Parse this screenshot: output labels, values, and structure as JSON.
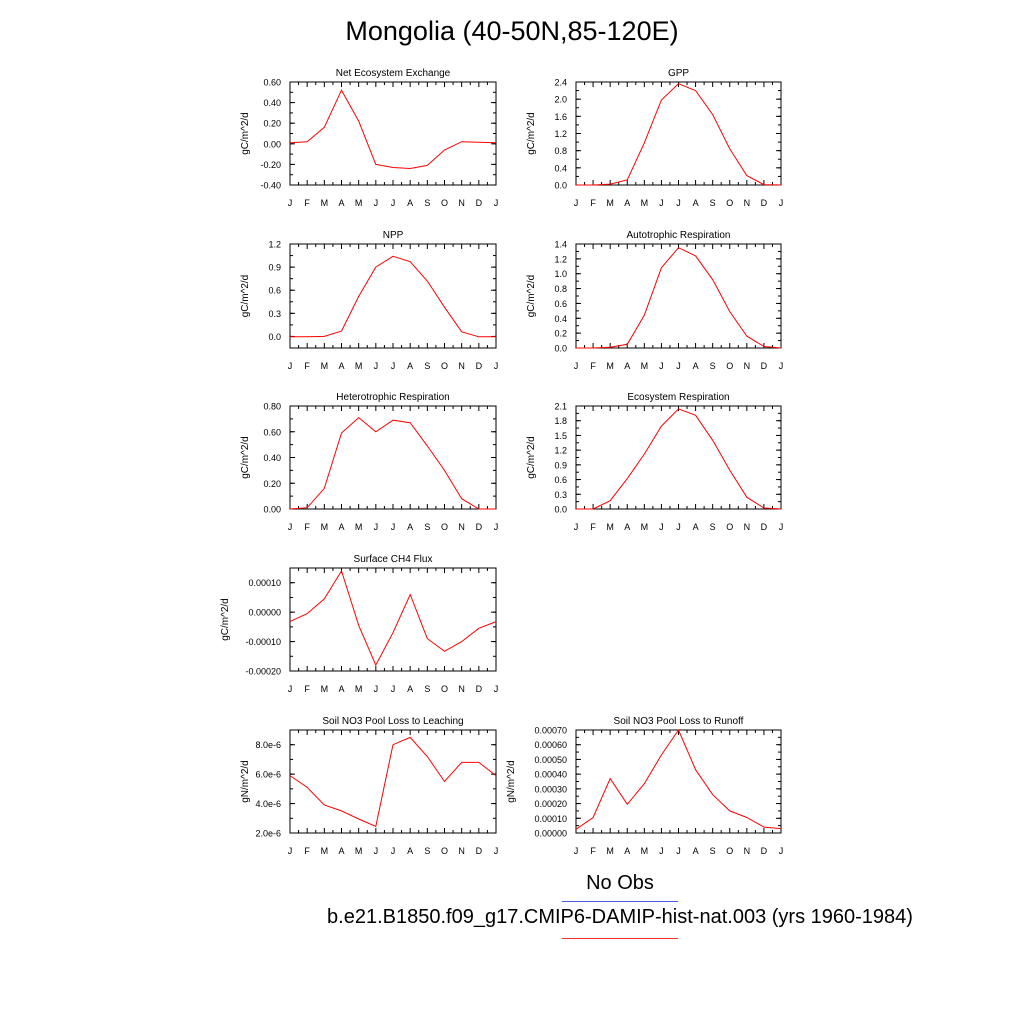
{
  "title": "Mongolia (40-50N,85-120E)",
  "legend": {
    "obs_label": "No Obs",
    "obs_color": "#4a5ee8",
    "case_label": "b.e21.B1850.f09_g17.CMIP6-DAMIP-hist-nat.003 (yrs 1960-1984)",
    "case_color": "#ff0000"
  },
  "chart_data": [
    {
      "type": "line",
      "title": "Net Ecosystem Exchange",
      "ylabel": "gC/m^2/d",
      "categories": [
        "J",
        "F",
        "M",
        "A",
        "M",
        "J",
        "J",
        "A",
        "S",
        "O",
        "N",
        "D",
        "J"
      ],
      "ylim": [
        -0.4,
        0.6
      ],
      "yticks": [
        "-0.40",
        "-0.20",
        "0.00",
        "0.20",
        "0.40",
        "0.60"
      ],
      "series": [
        {
          "values": [
            0.01,
            0.02,
            0.16,
            0.52,
            0.22,
            -0.2,
            -0.23,
            -0.24,
            -0.21,
            -0.06,
            0.02,
            0.015,
            0.01
          ]
        }
      ]
    },
    {
      "type": "line",
      "title": "GPP",
      "ylabel": "gC/m^2/d",
      "categories": [
        "J",
        "F",
        "M",
        "A",
        "M",
        "J",
        "J",
        "A",
        "S",
        "O",
        "N",
        "D",
        "J"
      ],
      "ylim": [
        0,
        2.4
      ],
      "yticks": [
        "0.0",
        "0.4",
        "0.8",
        "1.2",
        "1.6",
        "2.0",
        "2.4"
      ],
      "series": [
        {
          "values": [
            0.0,
            0.0,
            0.02,
            0.12,
            0.98,
            1.98,
            2.36,
            2.2,
            1.64,
            0.84,
            0.22,
            0.01,
            0.0
          ]
        }
      ]
    },
    {
      "type": "line",
      "title": "NPP",
      "ylabel": "gC/m^2/d",
      "categories": [
        "J",
        "F",
        "M",
        "A",
        "M",
        "J",
        "J",
        "A",
        "S",
        "O",
        "N",
        "D",
        "J"
      ],
      "ylim": [
        -0.15,
        1.2
      ],
      "yticks": [
        "0.0",
        "0.3",
        "0.6",
        "0.9",
        "1.2"
      ],
      "series": [
        {
          "values": [
            -0.005,
            -0.005,
            0.0,
            0.07,
            0.52,
            0.9,
            1.04,
            0.97,
            0.72,
            0.38,
            0.06,
            -0.005,
            -0.005
          ]
        }
      ]
    },
    {
      "type": "line",
      "title": "Autotrophic Respiration",
      "ylabel": "gC/m^2/d",
      "categories": [
        "J",
        "F",
        "M",
        "A",
        "M",
        "J",
        "J",
        "A",
        "S",
        "O",
        "N",
        "D",
        "J"
      ],
      "ylim": [
        0,
        1.4
      ],
      "yticks": [
        "0.0",
        "0.2",
        "0.4",
        "0.6",
        "0.8",
        "1.0",
        "1.2",
        "1.4"
      ],
      "series": [
        {
          "values": [
            0.0,
            0.0,
            0.01,
            0.05,
            0.44,
            1.08,
            1.35,
            1.24,
            0.92,
            0.49,
            0.16,
            0.02,
            0.0
          ]
        }
      ]
    },
    {
      "type": "line",
      "title": "Heterotrophic Respiration",
      "ylabel": "gC/m^2/d",
      "categories": [
        "J",
        "F",
        "M",
        "A",
        "M",
        "J",
        "J",
        "A",
        "S",
        "O",
        "N",
        "D",
        "J"
      ],
      "ylim": [
        0,
        0.8
      ],
      "yticks": [
        "0.00",
        "0.20",
        "0.40",
        "0.60",
        "0.80"
      ],
      "series": [
        {
          "values": [
            0.0,
            0.01,
            0.16,
            0.59,
            0.71,
            0.6,
            0.69,
            0.67,
            0.49,
            0.3,
            0.08,
            0.0,
            0.0
          ]
        }
      ]
    },
    {
      "type": "line",
      "title": "Ecosystem Respiration",
      "ylabel": "gC/m^2/d",
      "categories": [
        "J",
        "F",
        "M",
        "A",
        "M",
        "J",
        "J",
        "A",
        "S",
        "O",
        "N",
        "D",
        "J"
      ],
      "ylim": [
        0,
        2.1
      ],
      "yticks": [
        "0.0",
        "0.3",
        "0.6",
        "0.9",
        "1.2",
        "1.5",
        "1.8",
        "2.1"
      ],
      "series": [
        {
          "values": [
            0.0,
            0.0,
            0.17,
            0.62,
            1.12,
            1.69,
            2.04,
            1.91,
            1.4,
            0.79,
            0.24,
            0.02,
            0.0
          ]
        }
      ]
    },
    {
      "type": "line",
      "title": "Surface CH4 Flux",
      "ylabel": "gC/m^2/d",
      "categories": [
        "J",
        "F",
        "M",
        "A",
        "M",
        "J",
        "J",
        "A",
        "S",
        "O",
        "N",
        "D",
        "J"
      ],
      "ylim": [
        -0.0002,
        0.00015
      ],
      "yticks": [
        "-0.00020",
        "-0.00010",
        "0.00000",
        "0.00010"
      ],
      "ytick_values": [
        -0.0002,
        -0.0001,
        0.0,
        0.0001
      ],
      "series": [
        {
          "values": [
            -3.2e-05,
            -5e-06,
            4.5e-05,
            0.00014,
            -4.5e-05,
            -0.00018,
            -7e-05,
            6e-05,
            -9e-05,
            -0.000133,
            -0.0001,
            -5.5e-05,
            -3.2e-05
          ]
        }
      ]
    },
    {
      "type": "line",
      "title": "Soil NO3 Pool Loss to Leaching",
      "ylabel": "gN/m^2/d",
      "categories": [
        "J",
        "F",
        "M",
        "A",
        "M",
        "J",
        "J",
        "A",
        "S",
        "O",
        "N",
        "D",
        "J"
      ],
      "ylim": [
        2e-06,
        9e-06
      ],
      "yticks": [
        "2.0e-6",
        "4.0e-6",
        "6.0e-6",
        "8.0e-6"
      ],
      "ytick_values": [
        2e-06,
        4e-06,
        6e-06,
        8e-06
      ],
      "series": [
        {
          "values": [
            5.9e-06,
            5.1e-06,
            3.9e-06,
            3.5e-06,
            2.95e-06,
            2.45e-06,
            8e-06,
            8.5e-06,
            7.2e-06,
            5.5e-06,
            6.8e-06,
            6.8e-06,
            5.9e-06
          ]
        }
      ]
    },
    {
      "type": "line",
      "title": "Soil NO3 Pool Loss to Runoff",
      "ylabel": "gN/m^2/d",
      "categories": [
        "J",
        "F",
        "M",
        "A",
        "M",
        "J",
        "J",
        "A",
        "S",
        "O",
        "N",
        "D",
        "J"
      ],
      "ylim": [
        0,
        0.0007
      ],
      "yticks": [
        "0.00000",
        "0.00010",
        "0.00020",
        "0.00030",
        "0.00040",
        "0.00050",
        "0.00060",
        "0.00070"
      ],
      "ytick_values": [
        0,
        0.0001,
        0.0002,
        0.0003,
        0.0004,
        0.0005,
        0.0006,
        0.0007
      ],
      "series": [
        {
          "values": [
            2.5e-05,
            0.000105,
            0.00037,
            0.000195,
            0.000335,
            0.00053,
            0.0007,
            0.00043,
            0.00026,
            0.00015,
            0.000105,
            4e-05,
            3e-05
          ]
        }
      ]
    }
  ]
}
